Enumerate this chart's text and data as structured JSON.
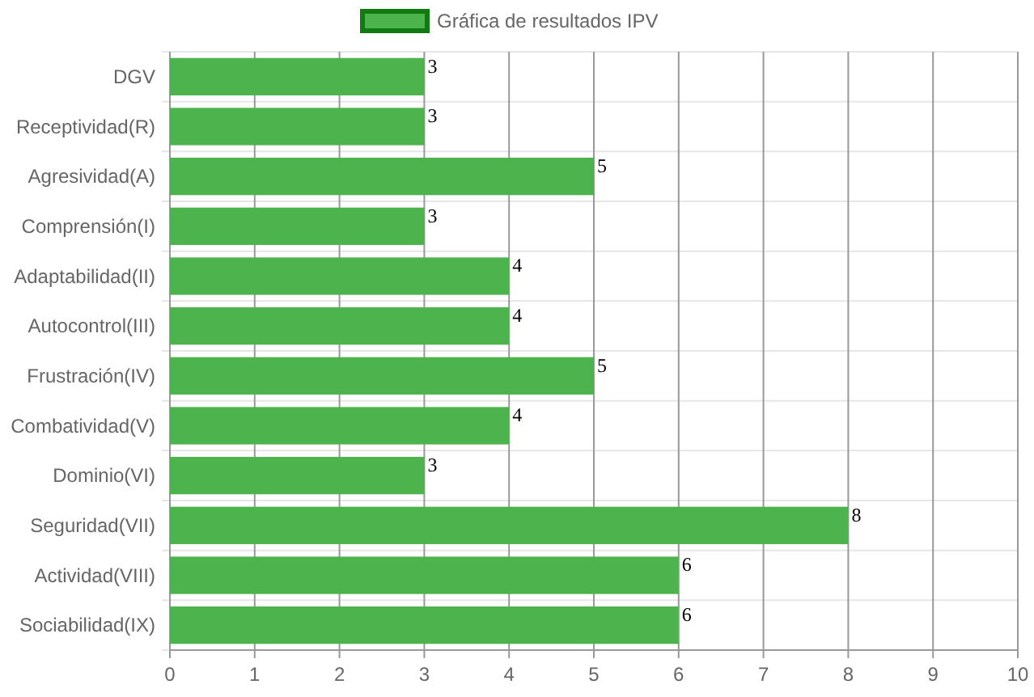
{
  "chart_data": {
    "type": "bar",
    "orientation": "horizontal",
    "categories": [
      "DGV",
      "Receptividad(R)",
      "Agresividad(A)",
      "Comprensión(I)",
      "Adaptabilidad(II)",
      "Autocontrol(III)",
      "Frustración(IV)",
      "Combatividad(V)",
      "Dominio(VI)",
      "Seguridad(VII)",
      "Actividad(VIII)",
      "Sociabilidad(IX)"
    ],
    "series": [
      {
        "name": "Gráfica de resultados IPV",
        "color": "#4db34d",
        "values": [
          3,
          3,
          5,
          3,
          4,
          4,
          5,
          4,
          3,
          8,
          6,
          6
        ]
      }
    ],
    "xlim": [
      0,
      10
    ],
    "xticks": [
      0,
      1,
      2,
      3,
      4,
      5,
      6,
      7,
      8,
      9,
      10
    ],
    "grid": true,
    "legend": "top",
    "data_labels": true
  }
}
